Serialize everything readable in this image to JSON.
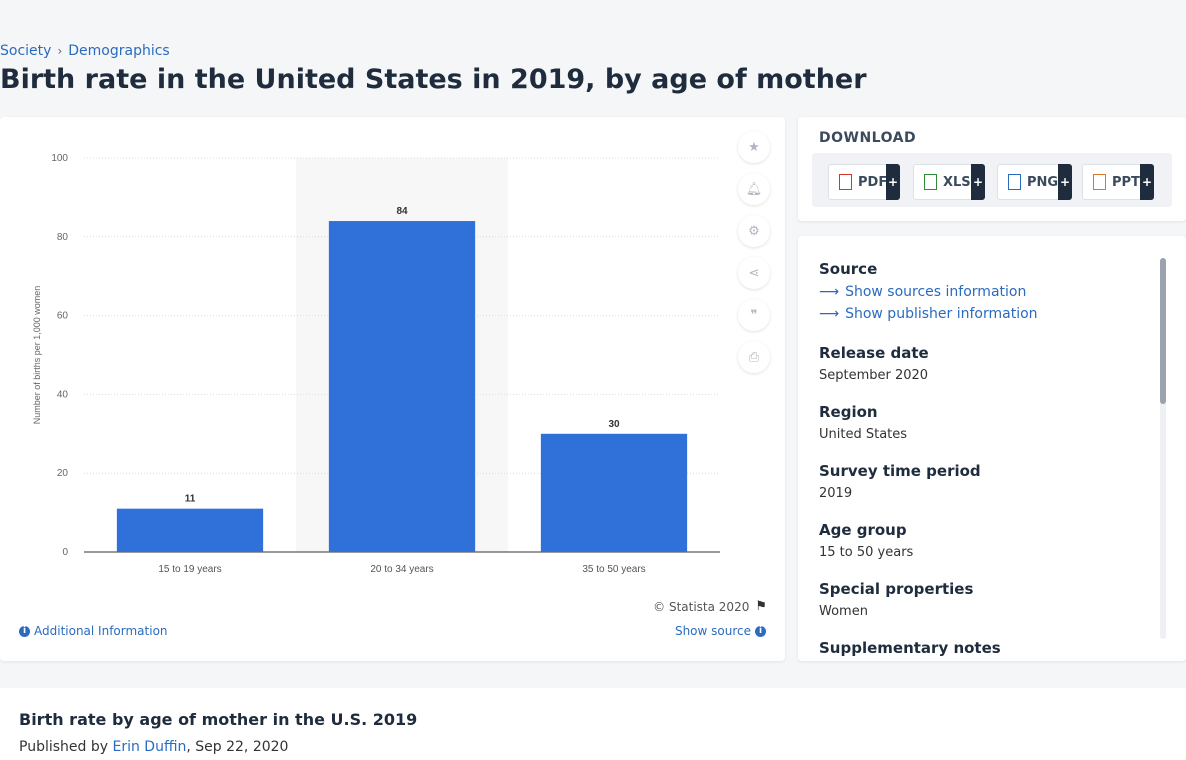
{
  "breadcrumb": {
    "items": [
      "Society",
      "Demographics"
    ],
    "separator": "›"
  },
  "page": {
    "title": "Birth rate in the United States in 2019, by age of mother"
  },
  "toolbar": {
    "icons": [
      "star-icon",
      "bell-icon",
      "gear-icon",
      "share-icon",
      "quote-icon",
      "print-icon"
    ]
  },
  "chart_footer": {
    "copyright": "© Statista 2020",
    "additional_info": "Additional Information",
    "show_source": "Show source"
  },
  "chart_data": {
    "type": "bar",
    "categories": [
      "15 to 19 years",
      "20 to 34 years",
      "35 to 50 years"
    ],
    "values": [
      11,
      84,
      30
    ],
    "ylabel": "Number of births per 1,000 women",
    "ylim": [
      0,
      100
    ],
    "yticks": [
      0,
      20,
      40,
      60,
      80,
      100
    ],
    "highlight_index": 1,
    "bar_color": "#3071d9",
    "grid": true
  },
  "download": {
    "title": "DOWNLOAD",
    "buttons": [
      {
        "label": "PDF",
        "plus": "+",
        "icon": "pdf-file-icon",
        "color": "#d9342b"
      },
      {
        "label": "XLS",
        "plus": "+",
        "icon": "xls-file-icon",
        "color": "#2e8b3a"
      },
      {
        "label": "PNG",
        "plus": "+",
        "icon": "png-file-icon",
        "color": "#2a6bbf"
      },
      {
        "label": "PPT",
        "plus": "+",
        "icon": "ppt-file-icon",
        "color": "#e0742a"
      }
    ]
  },
  "meta": {
    "source_label": "Source",
    "show_sources": "Show sources information",
    "show_publisher": "Show publisher information",
    "release_date_label": "Release date",
    "release_date": "September 2020",
    "region_label": "Region",
    "region": "United States",
    "survey_period_label": "Survey time period",
    "survey_period": "2019",
    "age_group_label": "Age group",
    "age_group": "15 to 50 years",
    "special_label": "Special properties",
    "special": "Women",
    "supplementary_label": "Supplementary notes"
  },
  "report": {
    "title": "Birth rate by age of mother in the U.S. 2019",
    "published_prefix": "Published by",
    "author": "Erin Duffin",
    "date": ", Sep 22, 2020"
  }
}
